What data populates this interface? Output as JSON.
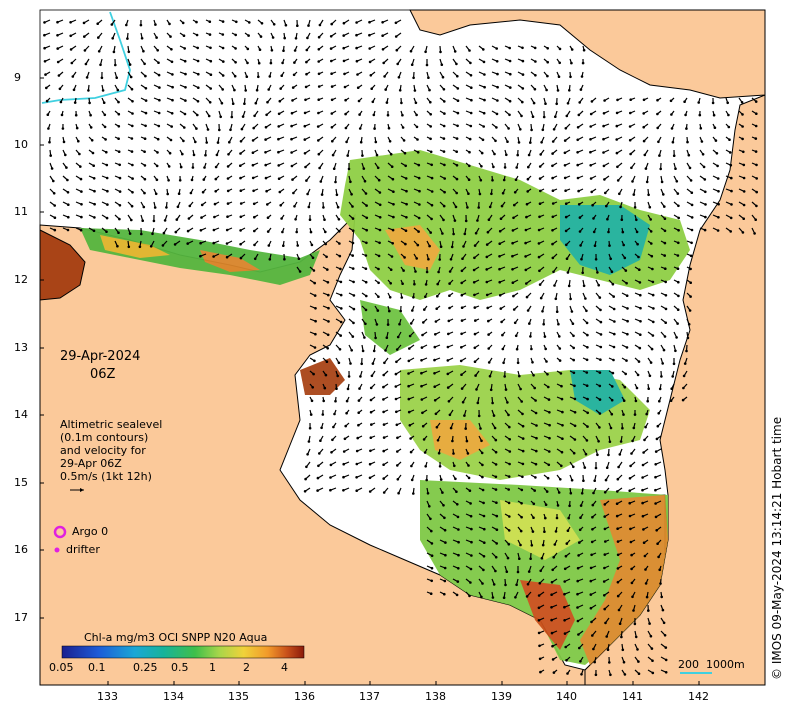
{
  "map": {
    "date": "29-Apr-2024",
    "time": "06Z",
    "legend_text": [
      "Altimetric sealevel",
      "(0.1m contours)",
      "and velocity for",
      "29-Apr 06Z",
      "0.5m/s (1kt 12h)"
    ],
    "argo_label": "Argo 0",
    "drifter_label": "drifter",
    "scale_label_a": "200",
    "scale_label_b": "1000m",
    "credit": "© IMOS 09-May-2024 13:14:21 Hobart time",
    "lat_ticks": [
      "9",
      "10",
      "11",
      "12",
      "13",
      "14",
      "15",
      "16",
      "17"
    ],
    "lon_ticks": [
      "133",
      "134",
      "135",
      "136",
      "137",
      "138",
      "139",
      "140",
      "141",
      "142"
    ]
  },
  "colorbar": {
    "title": "Chl-a mg/m3 OCI SNPP N20 Aqua",
    "ticks": [
      "0.05",
      "0.1",
      "0.25",
      "0.5",
      "1",
      "2",
      "4"
    ],
    "colors": [
      "#1a1f8f",
      "#1d5bd8",
      "#1aa7d6",
      "#17b39a",
      "#3fbf4a",
      "#a8d64a",
      "#f0d23a",
      "#f29a2a",
      "#c8501a",
      "#8b1a0a"
    ]
  },
  "colors": {
    "land": "#fbc99a",
    "ocean": "#ffffff",
    "shelf_line": "#3fd0e0",
    "argo": "#e020e0"
  }
}
